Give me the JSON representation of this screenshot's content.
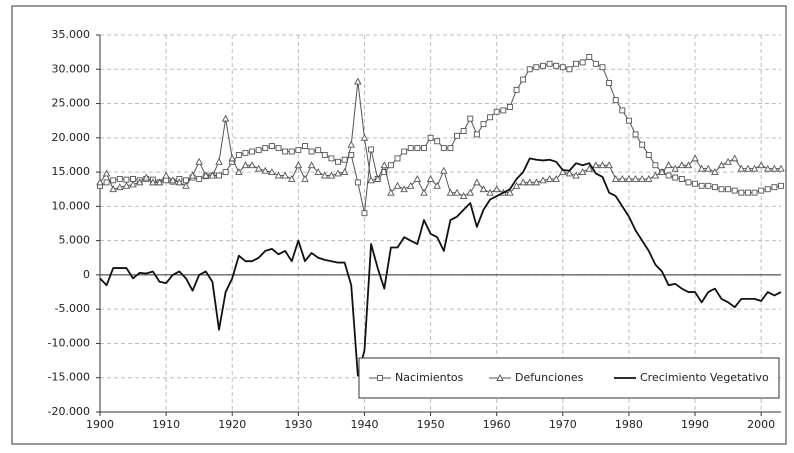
{
  "chart_data": {
    "type": "line",
    "x": [
      1900,
      1901,
      1902,
      1903,
      1904,
      1905,
      1906,
      1907,
      1908,
      1909,
      1910,
      1911,
      1912,
      1913,
      1914,
      1915,
      1916,
      1917,
      1918,
      1919,
      1920,
      1921,
      1922,
      1923,
      1924,
      1925,
      1926,
      1927,
      1928,
      1929,
      1930,
      1931,
      1932,
      1933,
      1934,
      1935,
      1936,
      1937,
      1938,
      1939,
      1940,
      1941,
      1942,
      1943,
      1944,
      1945,
      1946,
      1947,
      1948,
      1949,
      1950,
      1951,
      1952,
      1953,
      1954,
      1955,
      1956,
      1957,
      1958,
      1959,
      1960,
      1961,
      1962,
      1963,
      1964,
      1965,
      1966,
      1967,
      1968,
      1969,
      1970,
      1971,
      1972,
      1973,
      1974,
      1975,
      1976,
      1977,
      1978,
      1979,
      1980,
      1981,
      1982,
      1983,
      1984,
      1985,
      1986,
      1987,
      1988,
      1989,
      1990,
      1991,
      1992,
      1993,
      1994,
      1995,
      1996,
      1997,
      1998,
      1999,
      2000,
      2001,
      2002,
      2003
    ],
    "series": [
      {
        "name": "Nacimientos",
        "color": "#555555",
        "marker": "square",
        "values": [
          13000,
          13500,
          13800,
          14000,
          13900,
          14000,
          13800,
          14000,
          13900,
          13500,
          13800,
          13600,
          14000,
          13800,
          14200,
          14000,
          14400,
          14500,
          14500,
          15000,
          16500,
          17500,
          17800,
          18000,
          18200,
          18500,
          18800,
          18500,
          18000,
          18000,
          18200,
          18800,
          18000,
          18200,
          17500,
          17000,
          16500,
          16800,
          17500,
          13500,
          9000,
          18300,
          14000,
          15000,
          16000,
          17000,
          18000,
          18500,
          18500,
          18500,
          20000,
          19500,
          18500,
          18500,
          20300,
          21000,
          22800,
          20500,
          22000,
          23000,
          23800,
          24000,
          24500,
          27000,
          28500,
          30000,
          30300,
          30500,
          30800,
          30500,
          30300,
          30000,
          30800,
          31000,
          31800,
          30800,
          30300,
          28000,
          25500,
          24000,
          22500,
          20500,
          19000,
          17500,
          16000,
          15000,
          14500,
          14200,
          14000,
          13500,
          13300,
          13000,
          13000,
          12800,
          12500,
          12500,
          12300,
          12000,
          12000,
          12000,
          12300,
          12500,
          12800,
          13000
        ]
      },
      {
        "name": "Defunciones",
        "color": "#555555",
        "marker": "triangle",
        "values": [
          13500,
          14800,
          12500,
          12800,
          13000,
          13200,
          13500,
          14200,
          13500,
          13500,
          14500,
          13800,
          13500,
          13000,
          14500,
          16500,
          14500,
          14500,
          16500,
          22800,
          17000,
          15000,
          16000,
          16000,
          15500,
          15200,
          15000,
          14500,
          14500,
          14000,
          16000,
          14000,
          16000,
          15000,
          14500,
          14500,
          14800,
          15000,
          19000,
          28200,
          20000,
          13800,
          14000,
          16000,
          12000,
          13000,
          12500,
          13000,
          14000,
          12000,
          14000,
          13000,
          15200,
          12000,
          12000,
          11500,
          12000,
          13500,
          12500,
          12000,
          12500,
          12000,
          12000,
          13000,
          13500,
          13500,
          13500,
          13800,
          14000,
          14000,
          15000,
          14800,
          14500,
          15000,
          15500,
          16000,
          16000,
          16000,
          14000,
          14000,
          14000,
          14000,
          14000,
          14000,
          14500,
          15000,
          16000,
          15500,
          16000,
          16000,
          17000,
          15500,
          15500,
          15000,
          16000,
          16500,
          17000,
          15500,
          15500,
          15500,
          16000,
          15500,
          15500,
          15500
        ]
      },
      {
        "name": "Crecimiento Vegetativo",
        "color": "#111111",
        "marker": "none",
        "values": [
          -500,
          -1500,
          1000,
          1000,
          1000,
          -500,
          300,
          200,
          500,
          -1000,
          -1200,
          0,
          500,
          -500,
          -2300,
          0,
          500,
          -1000,
          -8000,
          -2500,
          -500,
          2800,
          2000,
          2000,
          2500,
          3500,
          3800,
          3000,
          3500,
          2000,
          5000,
          2000,
          3200,
          2500,
          2200,
          2000,
          1800,
          1800,
          -1500,
          -14700,
          -11000,
          4500,
          1000,
          -2000,
          4000,
          4000,
          5500,
          5000,
          4500,
          8000,
          6000,
          5500,
          3500,
          8000,
          8500,
          9500,
          10500,
          7000,
          9500,
          11000,
          11500,
          12000,
          12500,
          14000,
          15000,
          17000,
          16800,
          16700,
          16800,
          16500,
          15300,
          15200,
          16300,
          16000,
          16300,
          14800,
          14300,
          12000,
          11500,
          10000,
          8500,
          6500,
          5000,
          3500,
          1500,
          500,
          -1500,
          -1300,
          -2000,
          -2500,
          -2500,
          -4000,
          -2500,
          -2000,
          -3500,
          -4000,
          -4700,
          -3500,
          -3500,
          -3500,
          -3800,
          -2500,
          -3000,
          -2500
        ]
      }
    ],
    "xlim": [
      1900,
      2003
    ],
    "xticks": [
      1900,
      1910,
      1920,
      1930,
      1940,
      1950,
      1960,
      1970,
      1980,
      1990,
      2000
    ],
    "ylim": [
      -20000,
      35000
    ],
    "yticks": [
      {
        "value": -20000,
        "label": "-20.000"
      },
      {
        "value": -15000,
        "label": "-15.000"
      },
      {
        "value": -10000,
        "label": "-10.000"
      },
      {
        "value": -5000,
        "label": "-5.000"
      },
      0,
      {
        "value": 5000,
        "label": "5.000"
      },
      {
        "value": 10000,
        "label": "10.000"
      },
      {
        "value": 15000,
        "label": "15.000"
      },
      {
        "value": 20000,
        "label": "20.000"
      },
      {
        "value": 25000,
        "label": "25.000"
      },
      {
        "value": 30000,
        "label": "30.000"
      },
      {
        "value": 35000,
        "label": "35.000"
      }
    ],
    "grid": true,
    "legend": "lower right"
  }
}
